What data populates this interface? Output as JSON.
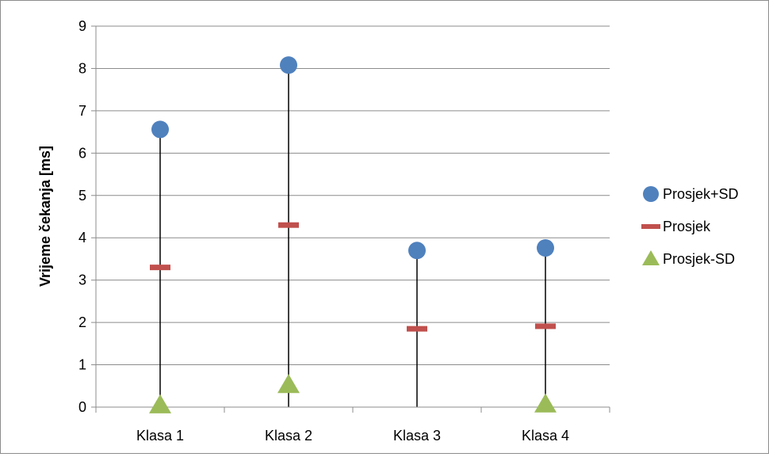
{
  "chart_data": {
    "type": "scatter",
    "title": "",
    "xlabel": "",
    "ylabel": "Vrijeme čekanja [ms]",
    "categories": [
      "Klasa 1",
      "Klasa 2",
      "Klasa 3",
      "Klasa 4"
    ],
    "ylim": [
      0,
      9
    ],
    "yticks": [
      0,
      1,
      2,
      3,
      4,
      5,
      6,
      7,
      8,
      9
    ],
    "grid": true,
    "legend_position": "right",
    "series": [
      {
        "name": "Prosjek+SD",
        "marker": "circle",
        "color": "#4f81bd",
        "values": [
          6.56,
          8.08,
          3.7,
          3.76
        ]
      },
      {
        "name": "Prosjek",
        "marker": "dash",
        "color": "#c0504d",
        "values": [
          3.3,
          4.3,
          1.85,
          1.91
        ]
      },
      {
        "name": "Prosjek-SD",
        "marker": "triangle",
        "color": "#9bbb59",
        "values": [
          0.04,
          0.52,
          null,
          0.06
        ]
      }
    ],
    "range_lines": {
      "color": "#000000",
      "from": [
        0,
        0,
        0,
        0
      ],
      "to": [
        6.56,
        8.08,
        3.7,
        3.76
      ]
    }
  }
}
